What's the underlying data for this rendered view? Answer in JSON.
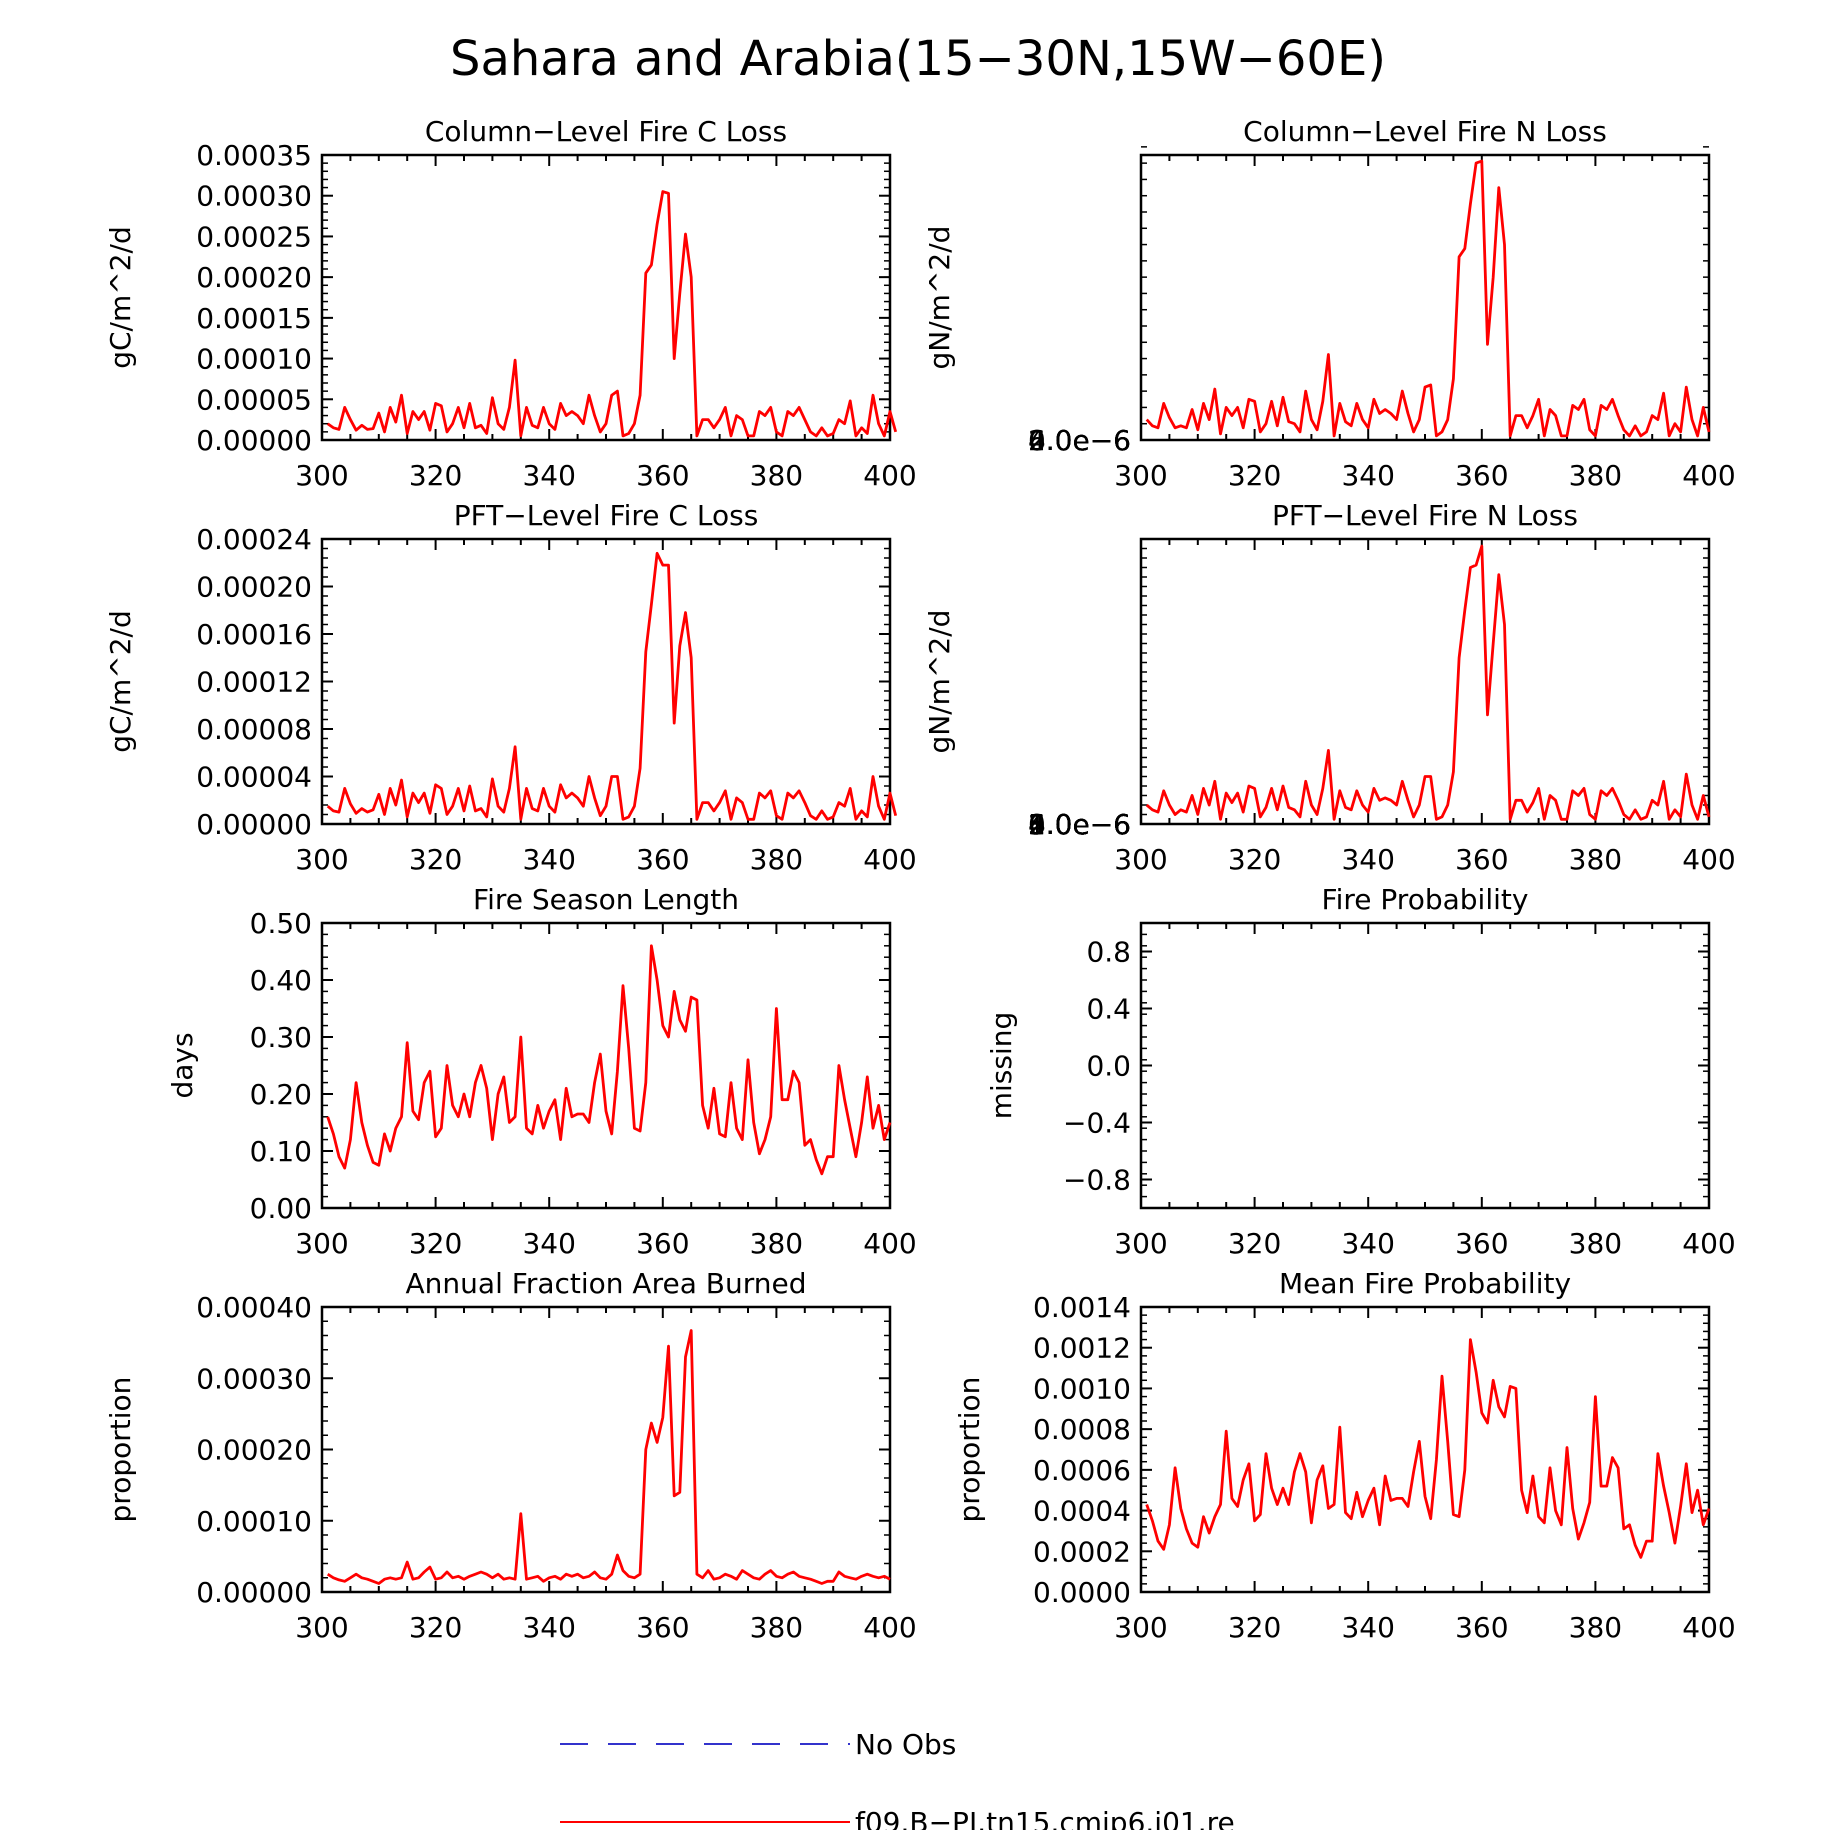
{
  "figure": {
    "title": "Sahara and Arabia(15−30N,15W−60E)",
    "legend": [
      {
        "label": "No Obs",
        "color": "#3333cc",
        "style": "dashed"
      },
      {
        "label": "f09.B−PI.tn15.cmip6.j01.re",
        "color": "#ff0000",
        "style": "solid"
      }
    ]
  },
  "chart_data": [
    {
      "type": "line",
      "title": "Column−Level Fire C Loss",
      "xlabel": "",
      "ylabel": "gC/m^2/d",
      "xlim": [
        300,
        400
      ],
      "ylim": [
        0,
        0.00035
      ],
      "xticks": [
        "300",
        "320",
        "340",
        "360",
        "380",
        "400"
      ],
      "yticks": [
        "0.00000",
        "0.00005",
        "0.00010",
        "0.00015",
        "0.00020",
        "0.00025",
        "0.00030",
        "0.00035"
      ],
      "x_start": 301,
      "values": [
        2e-05,
        1.5e-05,
        1.3e-05,
        4e-05,
        2.5e-05,
        1.2e-05,
        1.8e-05,
        1.3e-05,
        1.4e-05,
        3.3e-05,
        1e-05,
        4e-05,
        2.2e-05,
        5.5e-05,
        8e-06,
        3.5e-05,
        2.5e-05,
        3.5e-05,
        1.2e-05,
        4.5e-05,
        4.2e-05,
        1e-05,
        2e-05,
        4e-05,
        1.5e-05,
        4.5e-05,
        1.5e-05,
        1.8e-05,
        8e-06,
        5.2e-05,
        2e-05,
        1.3e-05,
        4e-05,
        9.8e-05,
        5e-06,
        4e-05,
        1.8e-05,
        1.5e-05,
        4e-05,
        2e-05,
        1.3e-05,
        4.5e-05,
        3e-05,
        3.5e-05,
        3e-05,
        2e-05,
        5.5e-05,
        3e-05,
        1e-05,
        2e-05,
        5.5e-05,
        6e-05,
        5e-06,
        8e-06,
        2e-05,
        5.5e-05,
        0.000205,
        0.000215,
        0.000265,
        0.000305,
        0.000303,
        0.0001,
        0.00018,
        0.000253,
        0.0002,
        5e-06,
        2.5e-05,
        2.5e-05,
        1.5e-05,
        2.5e-05,
        4e-05,
        5e-06,
        3e-05,
        2.5e-05,
        5e-06,
        5e-06,
        3.5e-05,
        3e-05,
        4e-05,
        1e-05,
        5e-06,
        3.5e-05,
        3e-05,
        4e-05,
        2.5e-05,
        1e-05,
        5e-06,
        1.5e-05,
        5e-06,
        8e-06,
        2.5e-05,
        2e-05,
        4.8e-05,
        5e-06,
        1.5e-05,
        8e-06,
        5.5e-05,
        2e-05,
        5e-06,
        3.5e-05,
        1e-05
      ]
    },
    {
      "type": "line",
      "title": "Column−Level Fire N Loss",
      "xlabel": "",
      "ylabel": "gN/m^2/d",
      "xlim": [
        300,
        400
      ],
      "ylim": [
        0,
        7e-06
      ],
      "xticks": [
        "300",
        "320",
        "340",
        "360",
        "380",
        "400"
      ],
      "yticks": [
        "0.0e−6",
        "2.0e−6",
        "4.0e−6",
        "6.0e−6"
      ],
      "x_start": 301,
      "values": [
        5e-07,
        3.5e-07,
        3e-07,
        9e-07,
        5.5e-07,
        3e-07,
        3.5e-07,
        3e-07,
        7.5e-07,
        2.5e-07,
        9e-07,
        5e-07,
        1.25e-06,
        1.5e-07,
        8e-07,
        6e-07,
        8e-07,
        3e-07,
        1e-06,
        9.5e-07,
        2e-07,
        4e-07,
        9.5e-07,
        3.5e-07,
        1.05e-06,
        4.5e-07,
        4e-07,
        2e-07,
        1.2e-06,
        5e-07,
        2.5e-07,
        9.5e-07,
        2.1e-06,
        1e-07,
        9e-07,
        4.5e-07,
        3.5e-07,
        9e-07,
        5e-07,
        3e-07,
        1e-06,
        6.5e-07,
        7.5e-07,
        6.5e-07,
        5e-07,
        1.2e-06,
        6.5e-07,
        2e-07,
        5e-07,
        1.3e-06,
        1.35e-06,
        1e-07,
        2e-07,
        5e-07,
        1.5e-06,
        4.5e-06,
        4.7e-06,
        5.8e-06,
        6.8e-06,
        6.85e-06,
        2.35e-06,
        4e-06,
        6.2e-06,
        4.8e-06,
        1e-07,
        6e-07,
        6e-07,
        3e-07,
        6e-07,
        1e-06,
        1e-07,
        7.5e-07,
        6e-07,
        1e-07,
        1e-07,
        8.5e-07,
        7.5e-07,
        1e-06,
        2.5e-07,
        1e-07,
        8.5e-07,
        7.5e-07,
        1e-06,
        6e-07,
        2.5e-07,
        1e-07,
        3.5e-07,
        1e-07,
        2e-07,
        6e-07,
        5e-07,
        1.15e-06,
        1e-07,
        4e-07,
        2e-07,
        1.3e-06,
        5e-07,
        1e-07,
        8e-07,
        2e-07
      ]
    },
    {
      "type": "line",
      "title": "PFT−Level Fire C Loss",
      "xlabel": "",
      "ylabel": "gC/m^2/d",
      "xlim": [
        300,
        400
      ],
      "ylim": [
        0,
        0.00024
      ],
      "xticks": [
        "300",
        "320",
        "340",
        "360",
        "380",
        "400"
      ],
      "yticks": [
        "0.00000",
        "0.00004",
        "0.00008",
        "0.00012",
        "0.00016",
        "0.00020",
        "0.00024"
      ],
      "x_start": 301,
      "values": [
        1.5e-05,
        1.1e-05,
        1e-05,
        3e-05,
        1.7e-05,
        9e-06,
        1.3e-05,
        1e-05,
        1.2e-05,
        2.5e-05,
        8e-06,
        3e-05,
        1.6e-05,
        3.7e-05,
        6e-06,
        2.6e-05,
        1.8e-05,
        2.6e-05,
        9e-06,
        3.3e-05,
        3e-05,
        8e-06,
        1.5e-05,
        3e-05,
        1.1e-05,
        3.2e-05,
        1.1e-05,
        1.3e-05,
        6e-06,
        3.8e-05,
        1.5e-05,
        1e-05,
        3e-05,
        6.5e-05,
        4e-06,
        3e-05,
        1.3e-05,
        1.1e-05,
        3e-05,
        1.5e-05,
        1e-05,
        3.3e-05,
        2.2e-05,
        2.6e-05,
        2.2e-05,
        1.5e-05,
        4e-05,
        2.2e-05,
        7e-06,
        1.5e-05,
        4e-05,
        4e-05,
        4e-06,
        6e-06,
        1.5e-05,
        4.7e-05,
        0.000145,
        0.000185,
        0.000228,
        0.000218,
        0.000218,
        8.5e-05,
        0.00015,
        0.000178,
        0.00014,
        4e-06,
        1.8e-05,
        1.8e-05,
        1.1e-05,
        1.8e-05,
        2.8e-05,
        4e-06,
        2.2e-05,
        1.8e-05,
        4e-06,
        4e-06,
        2.6e-05,
        2.2e-05,
        2.8e-05,
        7e-06,
        4e-06,
        2.6e-05,
        2.2e-05,
        2.8e-05,
        1.8e-05,
        7e-06,
        4e-06,
        1.1e-05,
        4e-06,
        6e-06,
        1.8e-05,
        1.5e-05,
        3e-05,
        4e-06,
        1.1e-05,
        6e-06,
        4e-05,
        1.5e-05,
        4e-06,
        2.6e-05,
        7e-06
      ]
    },
    {
      "type": "line",
      "title": "PFT−Level Fire N Loss",
      "xlabel": "",
      "ylabel": "gN/m^2/d",
      "xlim": [
        300,
        400
      ],
      "ylim": [
        0,
        6e-06
      ],
      "xticks": [
        "300",
        "320",
        "340",
        "360",
        "380",
        "400"
      ],
      "yticks": [
        "0.0e−6",
        "1.0e−6",
        "2.0e−6",
        "3.0e−6",
        "4.0e−6",
        "5.0e−6",
        "6.0e−6"
      ],
      "x_start": 301,
      "values": [
        4e-07,
        3e-07,
        2.5e-07,
        7e-07,
        4e-07,
        2e-07,
        3e-07,
        2.5e-07,
        6e-07,
        2e-07,
        7.5e-07,
        4e-07,
        9e-07,
        1e-07,
        6.5e-07,
        4.5e-07,
        6.5e-07,
        2.5e-07,
        8e-07,
        7.5e-07,
        1.5e-07,
        3.5e-07,
        7.5e-07,
        3e-07,
        8e-07,
        3.5e-07,
        3e-07,
        1.5e-07,
        9e-07,
        4e-07,
        2e-07,
        7.5e-07,
        1.55e-06,
        1e-07,
        7e-07,
        3.5e-07,
        3e-07,
        7e-07,
        4e-07,
        2.5e-07,
        7.5e-07,
        5e-07,
        5.5e-07,
        5e-07,
        4e-07,
        9e-07,
        5e-07,
        1.5e-07,
        4e-07,
        1e-06,
        1e-06,
        1e-07,
        1.5e-07,
        4e-07,
        1.1e-06,
        3.5e-06,
        4.5e-06,
        5.4e-06,
        5.45e-06,
        5.85e-06,
        2.3e-06,
        3.8e-06,
        5.25e-06,
        4.2e-06,
        1e-07,
        5e-07,
        5e-07,
        2.5e-07,
        4.5e-07,
        7.5e-07,
        1e-07,
        6e-07,
        5e-07,
        1e-07,
        1e-07,
        7e-07,
        6e-07,
        7.5e-07,
        2e-07,
        1e-07,
        7e-07,
        6e-07,
        7.5e-07,
        5e-07,
        2e-07,
        1e-07,
        3e-07,
        1e-07,
        1.5e-07,
        5e-07,
        4e-07,
        9e-07,
        1e-07,
        3e-07,
        1.5e-07,
        1.05e-06,
        4e-07,
        1e-07,
        6e-07,
        1.5e-07
      ]
    },
    {
      "type": "line",
      "title": "Fire Season Length",
      "xlabel": "",
      "ylabel": "days",
      "xlim": [
        300,
        400
      ],
      "ylim": [
        0,
        0.5
      ],
      "xticks": [
        "300",
        "320",
        "340",
        "360",
        "380",
        "400"
      ],
      "yticks": [
        "0.00",
        "0.10",
        "0.20",
        "0.30",
        "0.40",
        "0.50"
      ],
      "x_start": 301,
      "values": [
        0.16,
        0.13,
        0.09,
        0.07,
        0.12,
        0.22,
        0.15,
        0.11,
        0.08,
        0.075,
        0.13,
        0.1,
        0.14,
        0.16,
        0.29,
        0.17,
        0.155,
        0.22,
        0.24,
        0.125,
        0.14,
        0.25,
        0.18,
        0.16,
        0.2,
        0.16,
        0.22,
        0.25,
        0.21,
        0.12,
        0.2,
        0.23,
        0.15,
        0.16,
        0.3,
        0.14,
        0.13,
        0.18,
        0.14,
        0.17,
        0.19,
        0.12,
        0.21,
        0.16,
        0.165,
        0.165,
        0.15,
        0.22,
        0.27,
        0.17,
        0.13,
        0.24,
        0.39,
        0.28,
        0.14,
        0.135,
        0.22,
        0.46,
        0.4,
        0.32,
        0.3,
        0.38,
        0.33,
        0.31,
        0.37,
        0.365,
        0.18,
        0.14,
        0.21,
        0.13,
        0.125,
        0.22,
        0.14,
        0.12,
        0.26,
        0.15,
        0.095,
        0.12,
        0.16,
        0.35,
        0.19,
        0.19,
        0.24,
        0.22,
        0.11,
        0.12,
        0.085,
        0.06,
        0.09,
        0.09,
        0.25,
        0.19,
        0.14,
        0.09,
        0.15,
        0.23,
        0.14,
        0.18,
        0.12,
        0.15
      ]
    },
    {
      "type": "line",
      "title": "Fire Probability",
      "xlabel": "",
      "ylabel": "missing",
      "xlim": [
        300,
        400
      ],
      "ylim": [
        -1,
        1
      ],
      "xticks": [
        "300",
        "320",
        "340",
        "360",
        "380",
        "400"
      ],
      "yticks": [
        "−0.8",
        "−0.4",
        "0.0",
        "0.4",
        "0.8"
      ],
      "x_start": 301,
      "values": []
    },
    {
      "type": "line",
      "title": "Annual Fraction Area Burned",
      "xlabel": "",
      "ylabel": "proportion",
      "xlim": [
        300,
        400
      ],
      "ylim": [
        0,
        0.0004
      ],
      "xticks": [
        "300",
        "320",
        "340",
        "360",
        "380",
        "400"
      ],
      "yticks": [
        "0.00000",
        "0.00010",
        "0.00020",
        "0.00030",
        "0.00040"
      ],
      "x_start": 301,
      "values": [
        2.5e-05,
        2e-05,
        1.7e-05,
        1.5e-05,
        2e-05,
        2.5e-05,
        2e-05,
        1.8e-05,
        1.5e-05,
        1.2e-05,
        1.8e-05,
        2e-05,
        1.8e-05,
        2e-05,
        4.2e-05,
        1.8e-05,
        2e-05,
        2.8e-05,
        3.5e-05,
        1.8e-05,
        2e-05,
        2.8e-05,
        2e-05,
        2.2e-05,
        1.8e-05,
        2.2e-05,
        2.5e-05,
        2.8e-05,
        2.5e-05,
        2e-05,
        2.5e-05,
        1.8e-05,
        2e-05,
        1.8e-05,
        0.00011,
        1.8e-05,
        2e-05,
        2.2e-05,
        1.5e-05,
        2e-05,
        2.2e-05,
        1.8e-05,
        2.5e-05,
        2.2e-05,
        2.5e-05,
        2e-05,
        2.2e-05,
        2.8e-05,
        2e-05,
        1.8e-05,
        2.5e-05,
        5.2e-05,
        3e-05,
        2.2e-05,
        2e-05,
        2.5e-05,
        0.0002,
        0.000237,
        0.00021,
        0.000245,
        0.000345,
        0.000135,
        0.00014,
        0.00033,
        0.000367,
        2.5e-05,
        2e-05,
        3e-05,
        1.8e-05,
        2e-05,
        2.5e-05,
        2.2e-05,
        1.8e-05,
        3e-05,
        2.5e-05,
        2e-05,
        1.8e-05,
        2.5e-05,
        3e-05,
        2.2e-05,
        2e-05,
        2.5e-05,
        2.8e-05,
        2.2e-05,
        2e-05,
        1.8e-05,
        1.5e-05,
        1.2e-05,
        1.5e-05,
        1.5e-05,
        2.8e-05,
        2.2e-05,
        2e-05,
        1.8e-05,
        2.2e-05,
        2.5e-05,
        2.2e-05,
        2e-05,
        2.2e-05,
        1.8e-05
      ]
    },
    {
      "type": "line",
      "title": "Mean Fire Probability",
      "xlabel": "",
      "ylabel": "proportion",
      "xlim": [
        300,
        400
      ],
      "ylim": [
        0,
        0.0014
      ],
      "xticks": [
        "300",
        "320",
        "340",
        "360",
        "380",
        "400"
      ],
      "yticks": [
        "0.0000",
        "0.0002",
        "0.0004",
        "0.0006",
        "0.0008",
        "0.0010",
        "0.0012",
        "0.0014"
      ],
      "x_start": 301,
      "values": [
        0.00043,
        0.00035,
        0.00025,
        0.00021,
        0.00033,
        0.00061,
        0.00041,
        0.00031,
        0.00024,
        0.00022,
        0.00037,
        0.00029,
        0.00037,
        0.00043,
        0.00079,
        0.00046,
        0.00042,
        0.00055,
        0.00063,
        0.00035,
        0.00038,
        0.00068,
        0.00051,
        0.00043,
        0.00051,
        0.00043,
        0.00059,
        0.00068,
        0.00059,
        0.00034,
        0.00055,
        0.00062,
        0.00041,
        0.00043,
        0.00081,
        0.00039,
        0.00036,
        0.00049,
        0.00037,
        0.00045,
        0.00051,
        0.00033,
        0.00057,
        0.00045,
        0.00046,
        0.00046,
        0.00042,
        0.00059,
        0.00074,
        0.00047,
        0.00036,
        0.00065,
        0.00106,
        0.00074,
        0.00038,
        0.00037,
        0.0006,
        0.00124,
        0.00108,
        0.00088,
        0.00083,
        0.00104,
        0.00091,
        0.00086,
        0.00101,
        0.001,
        0.0005,
        0.00039,
        0.00057,
        0.00037,
        0.00034,
        0.00061,
        0.0004,
        0.00033,
        0.00071,
        0.00041,
        0.00026,
        0.00034,
        0.00044,
        0.00096,
        0.00052,
        0.00052,
        0.00066,
        0.00061,
        0.00031,
        0.00033,
        0.00023,
        0.00017,
        0.00025,
        0.00025,
        0.00068,
        0.00052,
        0.00039,
        0.00024,
        0.00042,
        0.00063,
        0.00039,
        0.0005,
        0.00033,
        0.00041
      ]
    }
  ]
}
